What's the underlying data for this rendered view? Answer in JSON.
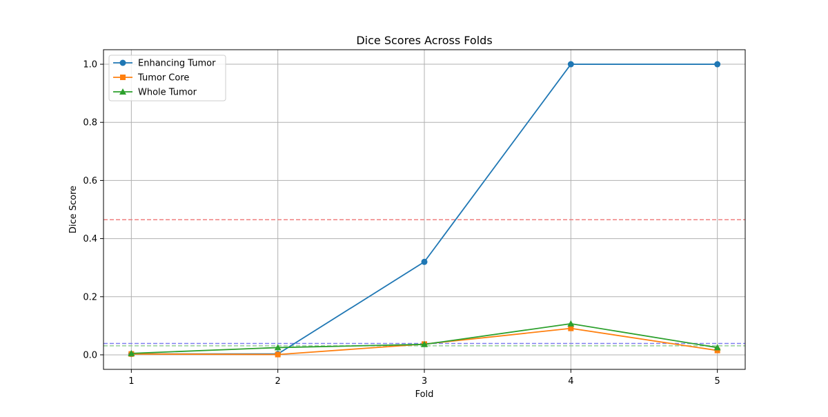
{
  "chart_data": {
    "type": "line",
    "title": "Dice Scores Across Folds",
    "xlabel": "Fold",
    "ylabel": "Dice Score",
    "x": [
      1,
      2,
      3,
      4,
      5
    ],
    "xlim": [
      0.81,
      5.19
    ],
    "ylim": [
      -0.05,
      1.05
    ],
    "xticks": [
      1,
      2,
      3,
      4,
      5
    ],
    "yticks": [
      0.0,
      0.2,
      0.4,
      0.6,
      0.8,
      1.0
    ],
    "xtick_labels": [
      "1",
      "2",
      "3",
      "4",
      "5"
    ],
    "ytick_labels": [
      "0.0",
      "0.2",
      "0.4",
      "0.6",
      "0.8",
      "1.0"
    ],
    "grid": true,
    "legend_position": "top-left",
    "series": [
      {
        "name": "Enhancing Tumor",
        "values": [
          0.003,
          0.003,
          0.32,
          1.0,
          1.0
        ],
        "color": "#1f77b4",
        "marker": "circle"
      },
      {
        "name": "Tumor Core",
        "values": [
          0.003,
          0.001,
          0.037,
          0.091,
          0.015
        ],
        "color": "#ff7f0e",
        "marker": "square"
      },
      {
        "name": "Whole Tumor",
        "values": [
          0.005,
          0.025,
          0.036,
          0.107,
          0.025
        ],
        "color": "#2ca02c",
        "marker": "triangle"
      }
    ],
    "reference_lines": [
      {
        "y": 0.465,
        "color": "#ef7f7f",
        "style": "dashed"
      },
      {
        "y": 0.039,
        "color": "#7f7fef",
        "style": "dashed"
      },
      {
        "y": 0.031,
        "color": "#95cf95",
        "style": "dashed"
      }
    ]
  }
}
